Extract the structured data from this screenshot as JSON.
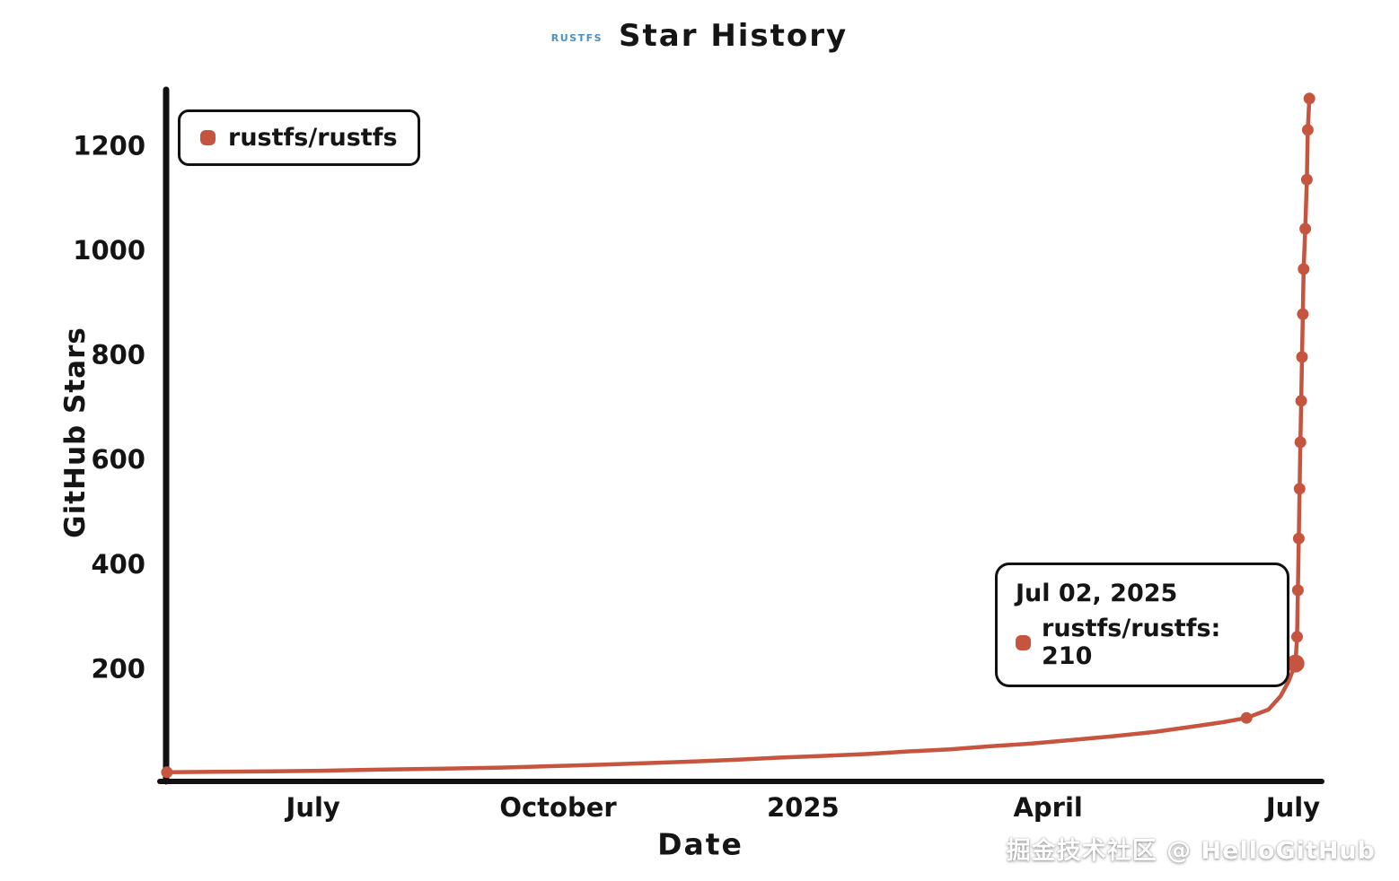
{
  "header": {
    "logo": "RUSTFS",
    "title": "Star History"
  },
  "legend": {
    "label": "rustfs/rustfs"
  },
  "tooltip": {
    "date": "Jul 02, 2025",
    "label": "rustfs/rustfs: 210"
  },
  "footer": {
    "watermark": "掘金技术社区 @ HelloGitHub"
  },
  "chart_data": {
    "type": "line",
    "title": "Star History",
    "xlabel": "Date",
    "ylabel": "GitHub Stars",
    "x_ticks": [
      0,
      3,
      6,
      9,
      12
    ],
    "x_tick_labels": [
      "July",
      "October",
      "2025",
      "April",
      "July"
    ],
    "y_ticks": [
      200,
      400,
      600,
      800,
      1000,
      1200
    ],
    "xlim": [
      -1.8,
      12.33
    ],
    "ylim": [
      0,
      1300
    ],
    "x_unit": "months since July 2024",
    "grid": false,
    "legend_position": "top-left",
    "series": [
      {
        "name": "rustfs/rustfs",
        "color": "#c65540",
        "points": [
          [
            -1.79,
            2
          ],
          [
            -1.2,
            3
          ],
          [
            -0.5,
            4
          ],
          [
            0.1,
            5
          ],
          [
            0.8,
            7
          ],
          [
            1.6,
            9
          ],
          [
            2.3,
            11
          ],
          [
            3.0,
            14
          ],
          [
            3.6,
            17
          ],
          [
            4.2,
            20
          ],
          [
            4.7,
            23
          ],
          [
            5.2,
            26
          ],
          [
            5.7,
            30
          ],
          [
            6.2,
            33
          ],
          [
            6.8,
            37
          ],
          [
            7.3,
            42
          ],
          [
            7.8,
            46
          ],
          [
            8.3,
            52
          ],
          [
            8.8,
            57
          ],
          [
            9.3,
            64
          ],
          [
            9.8,
            71
          ],
          [
            10.3,
            79
          ],
          [
            10.8,
            90
          ],
          [
            11.15,
            98
          ],
          [
            11.43,
            106
          ],
          [
            11.7,
            122
          ],
          [
            11.85,
            148
          ],
          [
            11.95,
            177
          ],
          [
            12.03,
            210
          ],
          [
            12.05,
            261
          ],
          [
            12.06,
            350
          ],
          [
            12.07,
            449
          ],
          [
            12.08,
            544
          ],
          [
            12.09,
            633
          ],
          [
            12.1,
            712
          ],
          [
            12.11,
            796
          ],
          [
            12.12,
            878
          ],
          [
            12.13,
            964
          ],
          [
            12.15,
            1041
          ],
          [
            12.17,
            1135
          ],
          [
            12.18,
            1230
          ],
          [
            12.2,
            1290
          ]
        ],
        "markers": [
          [
            -1.79,
            2
          ],
          [
            11.43,
            106
          ],
          [
            12.05,
            261
          ],
          [
            12.06,
            350
          ],
          [
            12.07,
            449
          ],
          [
            12.08,
            544
          ],
          [
            12.09,
            633
          ],
          [
            12.1,
            712
          ],
          [
            12.11,
            796
          ],
          [
            12.12,
            878
          ],
          [
            12.13,
            964
          ],
          [
            12.15,
            1041
          ],
          [
            12.17,
            1135
          ],
          [
            12.18,
            1230
          ],
          [
            12.2,
            1290
          ]
        ],
        "highlight": [
          12.03,
          210
        ],
        "highlight_value": 210,
        "highlight_date": "Jul 02, 2025"
      }
    ]
  }
}
